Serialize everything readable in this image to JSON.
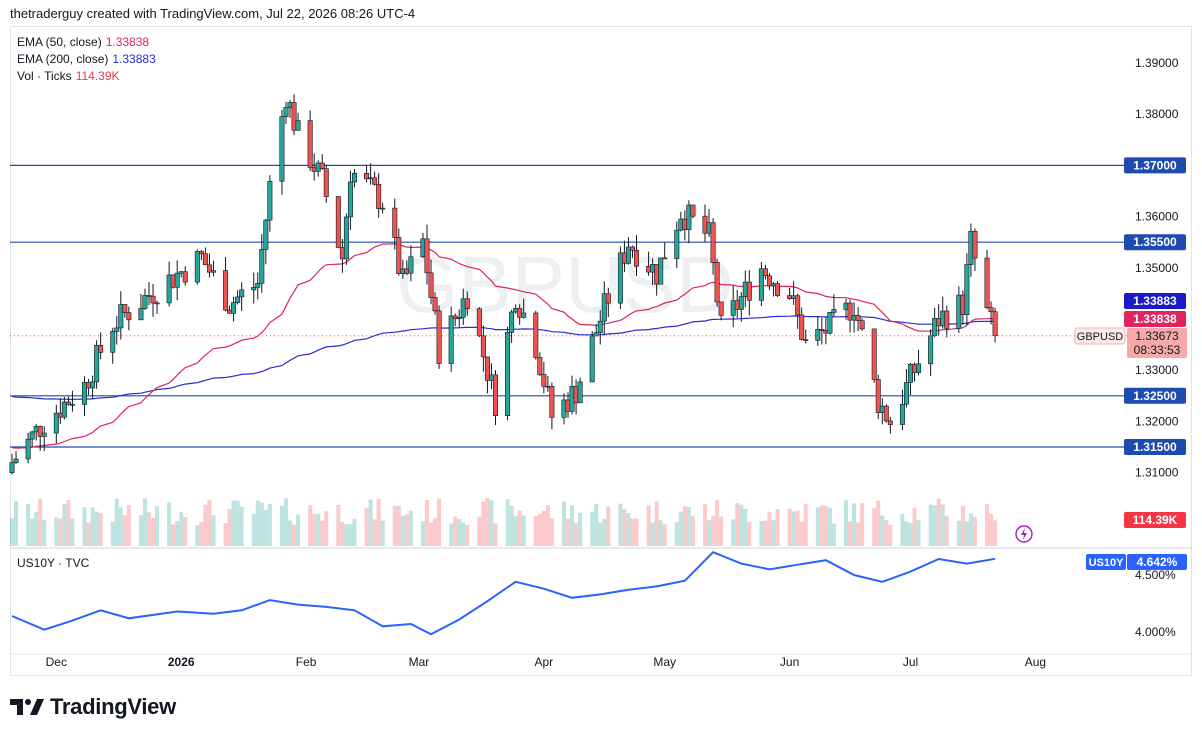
{
  "header": {
    "caption": "thetraderguy created with TradingView.com, Jul 22, 2026 08:26 UTC-4"
  },
  "watermark": "GBPUSD",
  "legend": [
    {
      "label": "EMA (50, close)",
      "value": "1.33838",
      "color": "#e0245e"
    },
    {
      "label": "EMA (200, close)",
      "value": "1.33883",
      "color": "#2a2ad4"
    },
    {
      "label": "Vol · Ticks",
      "value": "114.39K",
      "color": "#f23645"
    }
  ],
  "price_labels": {
    "ema200": "1.33883",
    "ema50": "1.33838",
    "symbol": "GBPUSD",
    "last_price": "1.33673",
    "countdown": "08:33:53",
    "volume": "114.39K"
  },
  "levels": [
    "1.37000",
    "1.35500",
    "1.32500",
    "1.31500"
  ],
  "y_ticks": [
    "1.39000",
    "1.38000",
    "1.37000",
    "1.36000",
    "1.35000",
    "1.34000",
    "1.33000",
    "1.32000",
    "1.31000"
  ],
  "x_ticks": [
    "Dec",
    "2026",
    "Feb",
    "Mar",
    "Apr",
    "May",
    "Jun",
    "Jul",
    "Aug"
  ],
  "sub_pane": {
    "legend": "US10Y · TVC",
    "symbol_tag": "US10Y",
    "last_value": "4.642%",
    "y_ticks": [
      "4.500%",
      "4.000%"
    ]
  },
  "brand": "TradingView",
  "colors": {
    "up": "#26a69a",
    "down": "#ef5350",
    "ema50": "#e0245e",
    "ema200": "#2a2ad4",
    "us10y": "#2962ff",
    "level": "#1e4bb0"
  },
  "chart_data": [
    {
      "type": "candlestick",
      "symbol": "GBPUSD",
      "timeframe": "daily",
      "x_range": [
        "2025-11-20",
        "2026-07-22"
      ],
      "ylim": [
        1.305,
        1.392
      ],
      "horizontal_levels": [
        1.37,
        1.355,
        1.325,
        1.315
      ],
      "last_close": 1.33673,
      "ema50_last": 1.33838,
      "ema200_last": 1.33883,
      "volume_last": "114.39K",
      "close_waypoints": [
        [
          "2025-11-20",
          1.312
        ],
        [
          "2025-11-28",
          1.32
        ],
        [
          "2025-12-08",
          1.327
        ],
        [
          "2025-12-15",
          1.339
        ],
        [
          "2025-12-26",
          1.346
        ],
        [
          "2026-01-06",
          1.352
        ],
        [
          "2026-01-13",
          1.343
        ],
        [
          "2026-01-20",
          1.347
        ],
        [
          "2026-01-23",
          1.366
        ],
        [
          "2026-01-27",
          1.384
        ],
        [
          "2026-01-30",
          1.376
        ],
        [
          "2026-02-05",
          1.367
        ],
        [
          "2026-02-10",
          1.352
        ],
        [
          "2026-02-12",
          1.369
        ],
        [
          "2026-02-20",
          1.363
        ],
        [
          "2026-02-25",
          1.347
        ],
        [
          "2026-03-02",
          1.355
        ],
        [
          "2026-03-06",
          1.334
        ],
        [
          "2026-03-13",
          1.345
        ],
        [
          "2026-03-20",
          1.324
        ],
        [
          "2026-03-25",
          1.345
        ],
        [
          "2026-03-30",
          1.335
        ],
        [
          "2026-04-03",
          1.321
        ],
        [
          "2026-04-09",
          1.326
        ],
        [
          "2026-04-15",
          1.34
        ],
        [
          "2026-04-22",
          1.355
        ],
        [
          "2026-04-29",
          1.349
        ],
        [
          "2026-05-05",
          1.361
        ],
        [
          "2026-05-12",
          1.356
        ],
        [
          "2026-05-15",
          1.338
        ],
        [
          "2026-05-20",
          1.344
        ],
        [
          "2026-05-25",
          1.35
        ],
        [
          "2026-06-01",
          1.345
        ],
        [
          "2026-06-05",
          1.335
        ],
        [
          "2026-06-12",
          1.339
        ],
        [
          "2026-06-17",
          1.343
        ],
        [
          "2026-06-23",
          1.324
        ],
        [
          "2026-06-26",
          1.32
        ],
        [
          "2026-07-02",
          1.33
        ],
        [
          "2026-07-08",
          1.34
        ],
        [
          "2026-07-14",
          1.343
        ],
        [
          "2026-07-16",
          1.355
        ],
        [
          "2026-07-20",
          1.341
        ],
        [
          "2026-07-22",
          1.33673
        ]
      ]
    },
    {
      "type": "line",
      "name": "US10Y",
      "ylim": [
        3.85,
        4.85
      ],
      "last_value": 4.642,
      "points": [
        [
          "2025-11-20",
          4.14
        ],
        [
          "2025-11-28",
          4.02
        ],
        [
          "2025-12-05",
          4.1
        ],
        [
          "2025-12-12",
          4.19
        ],
        [
          "2025-12-19",
          4.12
        ],
        [
          "2025-12-31",
          4.18
        ],
        [
          "2026-01-09",
          4.16
        ],
        [
          "2026-01-16",
          4.19
        ],
        [
          "2026-01-23",
          4.28
        ],
        [
          "2026-01-30",
          4.24
        ],
        [
          "2026-02-06",
          4.22
        ],
        [
          "2026-02-13",
          4.19
        ],
        [
          "2026-02-20",
          4.05
        ],
        [
          "2026-02-27",
          4.07
        ],
        [
          "2026-03-04",
          3.98
        ],
        [
          "2026-03-11",
          4.11
        ],
        [
          "2026-03-18",
          4.27
        ],
        [
          "2026-03-25",
          4.44
        ],
        [
          "2026-04-01",
          4.38
        ],
        [
          "2026-04-08",
          4.3
        ],
        [
          "2026-04-15",
          4.33
        ],
        [
          "2026-04-22",
          4.37
        ],
        [
          "2026-04-29",
          4.4
        ],
        [
          "2026-05-06",
          4.45
        ],
        [
          "2026-05-13",
          4.7
        ],
        [
          "2026-05-20",
          4.6
        ],
        [
          "2026-05-27",
          4.55
        ],
        [
          "2026-06-03",
          4.59
        ],
        [
          "2026-06-10",
          4.63
        ],
        [
          "2026-06-17",
          4.5
        ],
        [
          "2026-06-24",
          4.44
        ],
        [
          "2026-07-01",
          4.53
        ],
        [
          "2026-07-08",
          4.64
        ],
        [
          "2026-07-15",
          4.6
        ],
        [
          "2026-07-22",
          4.642
        ]
      ]
    }
  ]
}
